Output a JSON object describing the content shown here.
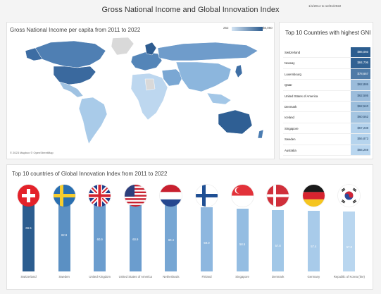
{
  "dashboard": {
    "title": "Gross National Income and Global Innovation Index",
    "date_range": "1/1/2014 to 12/31/2022"
  },
  "map": {
    "title": "Gross National Income  per capita from 2011 to 2022",
    "legend_min": "252",
    "legend_max": "$6,060",
    "legend_colors": [
      "#d3e4f4",
      "#2b5a8d"
    ],
    "credit": "© 2023 Mapbox © OpenStreetMap"
  },
  "gni": {
    "title": "Top 10 Countries with highest GNI",
    "rows": [
      {
        "country": "Switzerland",
        "value": "$86,060",
        "amount": 86060
      },
      {
        "country": "Norway",
        "value": "$84,706",
        "amount": 84706
      },
      {
        "country": "Luxembourg",
        "value": "$78,667",
        "amount": 78667
      },
      {
        "country": "Qatar",
        "value": "$62,886",
        "amount": 62886
      },
      {
        "country": "United States of America",
        "value": "$62,586",
        "amount": 62586
      },
      {
        "country": "Denmark",
        "value": "$62,540",
        "amount": 62540
      },
      {
        "country": "Iceland",
        "value": "$60,562",
        "amount": 60562
      },
      {
        "country": "Singapore",
        "value": "$57,238",
        "amount": 57238
      },
      {
        "country": "Sweden",
        "value": "$56,873",
        "amount": 56873
      },
      {
        "country": "Australia",
        "value": "$56,269",
        "amount": 56269
      }
    ]
  },
  "chart_data": {
    "type": "bar",
    "title": "Top 10 countries of Global Innovation Index from 2011 to 2022",
    "categories": [
      "Switzerland",
      "Sweden",
      "United Kingdom",
      "United States of America",
      "Netherlands",
      "Finland",
      "Singapore",
      "Denmark",
      "Germany",
      "Republic of Korea (the)"
    ],
    "values": [
      66.5,
      62.9,
      60.9,
      60.9,
      60.4,
      59.0,
      58.5,
      57.8,
      57.4,
      57.0
    ],
    "value_labels": [
      "66.5",
      "62.9",
      "60.9",
      "60.9",
      "60.4",
      "59.0",
      "58.5",
      "57.8",
      "57.4",
      "57.0"
    ],
    "flags": [
      "switzerland-flag-icon",
      "sweden-flag-icon",
      "united-kingdom-flag-icon",
      "usa-flag-icon",
      "netherlands-flag-icon",
      "finland-flag-icon",
      "singapore-flag-icon",
      "denmark-flag-icon",
      "germany-flag-icon",
      "south-korea-flag-icon"
    ],
    "colors": [
      "#2c5d8f",
      "#5b90c3",
      "#6b9dce",
      "#6b9dce",
      "#77a6d3",
      "#8db7df",
      "#94bde2",
      "#a1c7e7",
      "#a8cbea",
      "#b9d6ef"
    ],
    "xlabel": "",
    "ylabel": ""
  }
}
